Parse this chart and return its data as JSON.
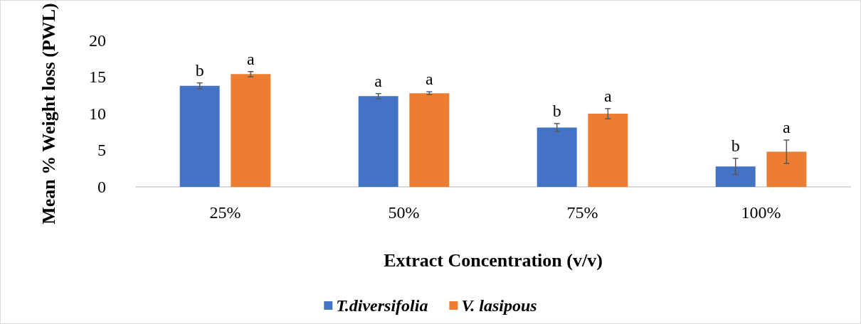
{
  "chart_data": {
    "type": "bar",
    "xlabel": "Extract Concentration (v/v)",
    "ylabel": "Mean % Weight loss (PWL)",
    "categories": [
      "25%",
      "50%",
      "75%",
      "100%"
    ],
    "series": [
      {
        "name": "T.diversifolia",
        "color": "#4472c4",
        "values": [
          13.8,
          12.4,
          8.1,
          2.8
        ],
        "errors": [
          0.4,
          0.35,
          0.55,
          1.1
        ],
        "value_labels": [
          "b",
          "a",
          "b",
          "b"
        ]
      },
      {
        "name": "V. lasipous",
        "color": "#ed7d31",
        "values": [
          15.4,
          12.8,
          10.0,
          4.8
        ],
        "errors": [
          0.35,
          0.2,
          0.7,
          1.6
        ],
        "value_labels": [
          "a",
          "a",
          "a",
          "a"
        ]
      }
    ],
    "ylim": [
      0,
      20
    ],
    "yticks": [
      0,
      5,
      10,
      15,
      20
    ],
    "grid": false,
    "legend": "bottom"
  }
}
